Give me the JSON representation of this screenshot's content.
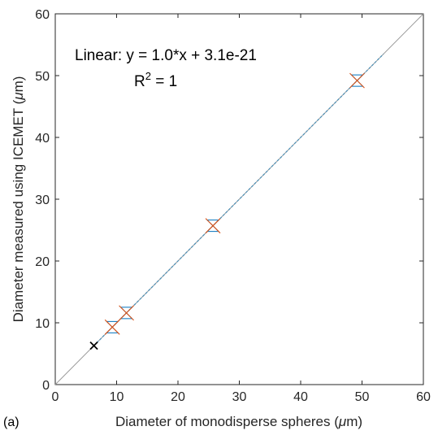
{
  "chart_data": {
    "type": "scatter",
    "panel_label": "(a)",
    "xlabel_main": "Diameter of monodisperse spheres (",
    "xlabel_unit_greek": "μ",
    "xlabel_unit_rest": "m)",
    "ylabel_main": "Diameter measured using ICEMET (",
    "ylabel_unit_greek": "μ",
    "ylabel_unit_rest": "m)",
    "xlim": [
      0,
      60
    ],
    "ylim": [
      0,
      60
    ],
    "xticks": [
      0,
      10,
      20,
      30,
      40,
      50,
      60
    ],
    "yticks": [
      0,
      10,
      20,
      30,
      40,
      50,
      60
    ],
    "xtick_labels": [
      "0",
      "10",
      "20",
      "30",
      "40",
      "50",
      "60"
    ],
    "ytick_labels": [
      "0",
      "10",
      "20",
      "30",
      "40",
      "50",
      "60"
    ],
    "grid": false,
    "annotation_fit": "Linear:  y = 1.0*x + 3.1e-21",
    "annotation_r2_prefix": "R",
    "annotation_r2_sup": "2",
    "annotation_r2_suffix": " = 1",
    "reference_line": {
      "x": [
        0,
        60
      ],
      "y": [
        0,
        60
      ],
      "color": "#9a9a9a"
    },
    "fit_line": {
      "x": [
        6.3,
        53.5
      ],
      "y": [
        6.3,
        53.5
      ],
      "color": "#4a90b8"
    },
    "points": [
      {
        "x": 6.3,
        "y": 6.3,
        "marker": "x",
        "color": "#000000"
      },
      {
        "x": 9.3,
        "y": 9.3,
        "marker": "x",
        "color": "#d9541a"
      },
      {
        "x": 11.6,
        "y": 11.6,
        "marker": "x",
        "color": "#d9541a"
      },
      {
        "x": 25.7,
        "y": 25.7,
        "marker": "x",
        "color": "#d9541a"
      },
      {
        "x": 49.2,
        "y": 49.2,
        "marker": "x",
        "color": "#d9541a"
      }
    ],
    "errorbars": [
      {
        "x": 9.3,
        "y": 9.3,
        "color": "#0072bd"
      },
      {
        "x": 11.6,
        "y": 11.6,
        "color": "#0072bd"
      },
      {
        "x": 25.7,
        "y": 25.7,
        "color": "#0072bd"
      },
      {
        "x": 49.2,
        "y": 49.2,
        "color": "#0072bd"
      }
    ]
  }
}
